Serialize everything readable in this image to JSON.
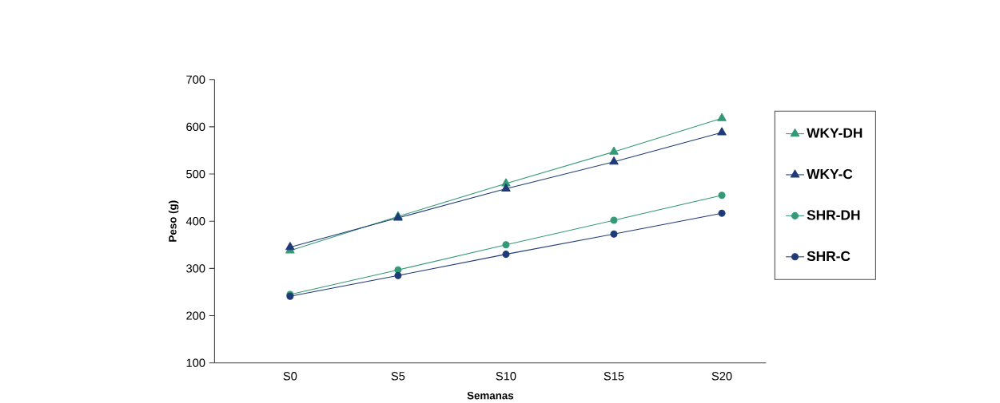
{
  "chart_data": {
    "type": "line",
    "xlabel": "Semanas",
    "ylabel": "Peso (g)",
    "categories": [
      "S0",
      "S5",
      "S10",
      "S15",
      "S20"
    ],
    "ylim": [
      100,
      700
    ],
    "yticks": [
      100,
      200,
      300,
      400,
      500,
      600,
      700
    ],
    "grid": false,
    "legend": "right",
    "line_style": "solid",
    "series": [
      {
        "name": "WKY-DH",
        "color": "#339977",
        "marker": "triangle",
        "values": [
          338,
          410,
          480,
          547,
          618
        ]
      },
      {
        "name": "WKY-C",
        "color": "#1f3a78",
        "marker": "triangle",
        "values": [
          345,
          407,
          469,
          526,
          588
        ]
      },
      {
        "name": "SHR-DH",
        "color": "#339977",
        "marker": "circle",
        "values": [
          245,
          297,
          350,
          402,
          455
        ]
      },
      {
        "name": "SHR-C",
        "color": "#1f3a78",
        "marker": "circle",
        "values": [
          241,
          285,
          330,
          373,
          417
        ]
      }
    ]
  }
}
